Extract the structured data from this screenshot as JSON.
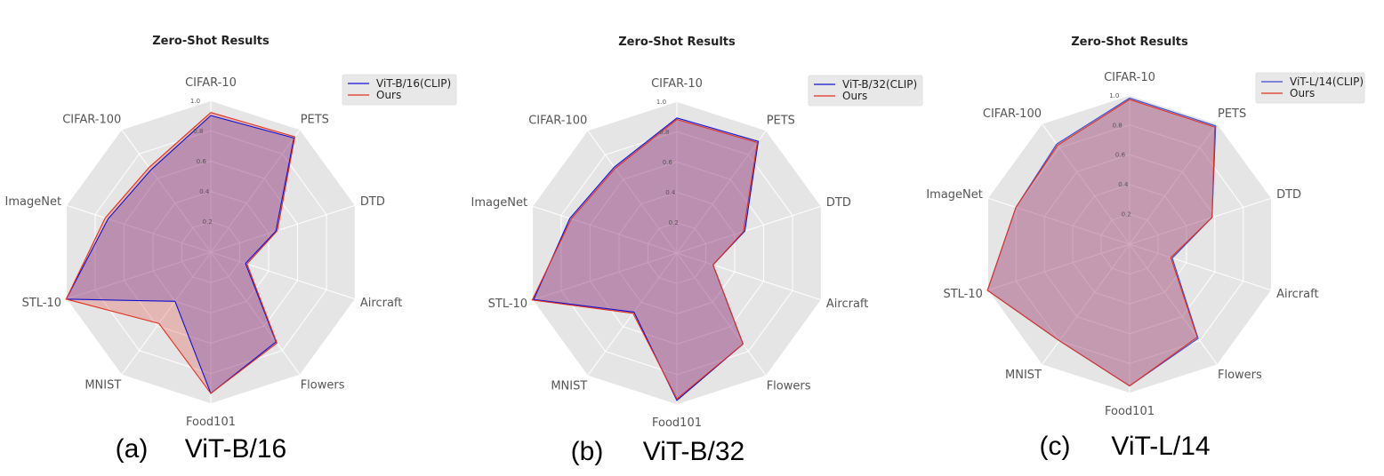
{
  "chart_data": [
    {
      "type": "radar",
      "title": "Zero-Shot Results",
      "caption_letter": "(a)",
      "caption_model": "ViT-B/16",
      "axes": [
        "CIFAR-10",
        "PETS",
        "DTD",
        "Aircraft",
        "Flowers",
        "Food101",
        "MNIST",
        "STL-10",
        "ImageNet",
        "CIFAR-100"
      ],
      "rticks": [
        "0.2",
        "0.4",
        "0.6",
        "0.8",
        "1.0"
      ],
      "rlim": [
        0,
        1.0
      ],
      "legend_position": "top-right",
      "series": [
        {
          "name": "ViT-B/16(CLIP)",
          "color": "#1010d0",
          "values": [
            0.9,
            0.93,
            0.45,
            0.24,
            0.73,
            0.93,
            0.4,
            1.0,
            0.71,
            0.67
          ]
        },
        {
          "name": "Ours",
          "color": "#e03020",
          "values": [
            0.92,
            0.94,
            0.46,
            0.25,
            0.74,
            0.93,
            0.58,
            1.0,
            0.73,
            0.69
          ]
        }
      ]
    },
    {
      "type": "radar",
      "title": "Zero-Shot Results",
      "caption_letter": "(b)",
      "caption_model": "ViT-B/32",
      "axes": [
        "CIFAR-10",
        "PETS",
        "DTD",
        "Aircraft",
        "Flowers",
        "Food101",
        "MNIST",
        "STL-10",
        "ImageNet",
        "CIFAR-100"
      ],
      "rticks": [
        "0.2",
        "0.4",
        "0.6",
        "0.8",
        "1.0"
      ],
      "rlim": [
        0,
        1.0
      ],
      "legend_position": "top-right",
      "series": [
        {
          "name": "ViT-B/32(CLIP)",
          "color": "#1010d0",
          "values": [
            0.89,
            0.91,
            0.47,
            0.25,
            0.74,
            0.97,
            0.48,
            0.99,
            0.74,
            0.7
          ]
        },
        {
          "name": "Ours",
          "color": "#e03020",
          "values": [
            0.88,
            0.9,
            0.46,
            0.25,
            0.74,
            0.96,
            0.49,
            1.0,
            0.73,
            0.69
          ]
        }
      ]
    },
    {
      "type": "radar",
      "title": "Zero-Shot Results",
      "caption_letter": "(c)",
      "caption_model": "ViT-L/14",
      "axes": [
        "CIFAR-10",
        "PETS",
        "DTD",
        "Aircraft",
        "Flowers",
        "Food101",
        "MNIST",
        "STL-10",
        "ImageNet",
        "CIFAR-100"
      ],
      "rticks": [
        "0.2",
        "0.4",
        "0.6",
        "0.8",
        "1.0"
      ],
      "rlim": [
        0,
        1.0
      ],
      "legend_position": "top-right",
      "series": [
        {
          "name": "ViT-L/14(CLIP)",
          "color": "#3a4ad0",
          "values": [
            0.98,
            0.98,
            0.58,
            0.3,
            0.78,
            0.95,
            0.8,
            1.0,
            0.8,
            0.83
          ]
        },
        {
          "name": "Ours",
          "color": "#e03020",
          "values": [
            0.97,
            0.97,
            0.58,
            0.29,
            0.77,
            0.95,
            0.8,
            1.0,
            0.8,
            0.82
          ]
        }
      ]
    }
  ]
}
